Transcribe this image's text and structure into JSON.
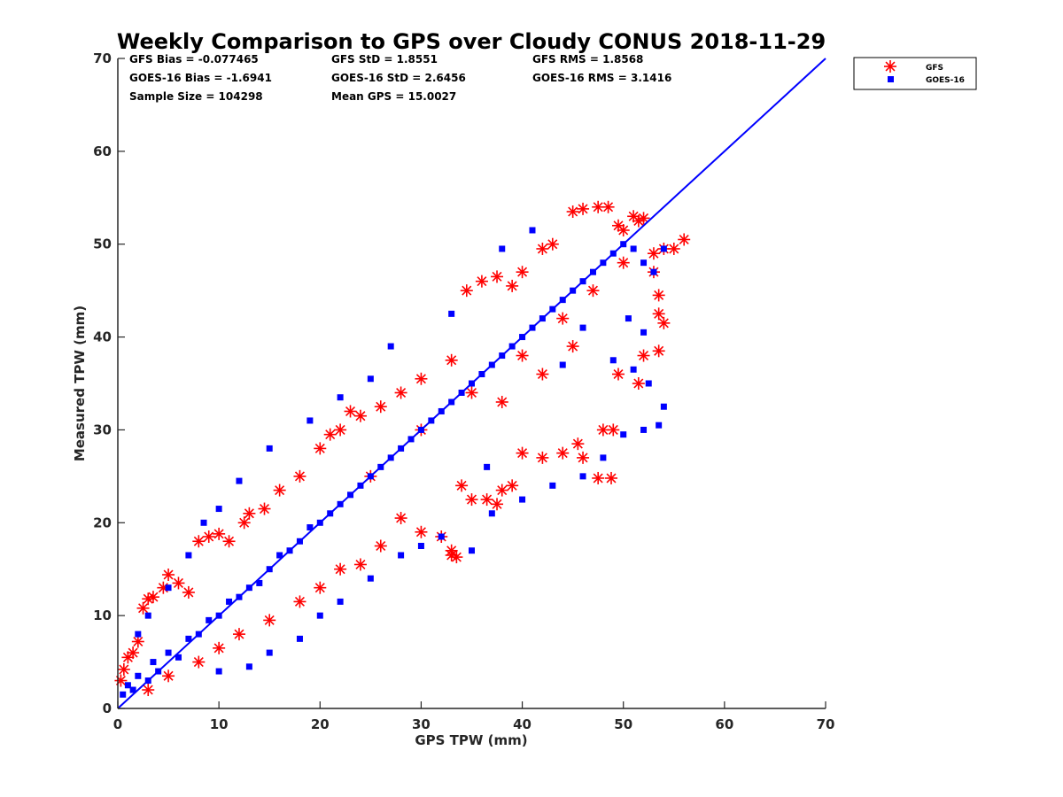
{
  "chart_data": {
    "type": "scatter",
    "title": "Weekly Comparison to GPS over Cloudy CONUS 2018-11-29",
    "xlabel": "GPS TPW (mm)",
    "ylabel": "Measured TPW (mm)",
    "xlim": [
      0,
      70
    ],
    "ylim": [
      0,
      70
    ],
    "xticks": [
      "0",
      "10",
      "20",
      "30",
      "40",
      "50",
      "60",
      "70"
    ],
    "yticks": [
      "0",
      "10",
      "20",
      "30",
      "40",
      "50",
      "60",
      "70"
    ],
    "grid": false,
    "legend_position": "outside-top-right",
    "reference_line": {
      "x": [
        0,
        70
      ],
      "y": [
        0,
        70
      ],
      "color": "#0000ff"
    },
    "stats": {
      "gfs_bias": "GFS Bias = -0.077465",
      "gfs_std": "GFS StD = 1.8551",
      "gfs_rms": "GFS RMS = 1.8568",
      "goes_bias": "GOES-16 Bias = -1.6941",
      "goes_std": "GOES-16 StD = 2.6456",
      "goes_rms": "GOES-16 RMS = 3.1416",
      "sample_size": "Sample Size = 104298",
      "mean_gps": "Mean GPS = 15.0027"
    },
    "series": [
      {
        "name": "GFS",
        "marker": "asterisk",
        "color": "#ff0000",
        "points": [
          [
            0.3,
            3.0
          ],
          [
            0.6,
            4.2
          ],
          [
            1.0,
            5.5
          ],
          [
            1.5,
            6.0
          ],
          [
            2.0,
            7.2
          ],
          [
            2.5,
            10.8
          ],
          [
            3.0,
            11.8
          ],
          [
            3.5,
            12.0
          ],
          [
            4.5,
            13.0
          ],
          [
            5.0,
            14.4
          ],
          [
            6.0,
            13.5
          ],
          [
            7.0,
            12.5
          ],
          [
            8.0,
            18.0
          ],
          [
            9.0,
            18.5
          ],
          [
            10.0,
            18.8
          ],
          [
            11.0,
            18.0
          ],
          [
            12.5,
            20.0
          ],
          [
            13.0,
            21.0
          ],
          [
            14.5,
            21.5
          ],
          [
            16.0,
            23.5
          ],
          [
            18.0,
            25.0
          ],
          [
            20.0,
            28.0
          ],
          [
            21.0,
            29.5
          ],
          [
            22.0,
            30.0
          ],
          [
            23.0,
            32.0
          ],
          [
            24.0,
            31.5
          ],
          [
            26.0,
            32.5
          ],
          [
            28.0,
            34.0
          ],
          [
            30.0,
            35.5
          ],
          [
            33.0,
            37.5
          ],
          [
            34.5,
            45.0
          ],
          [
            36.0,
            46.0
          ],
          [
            37.5,
            46.5
          ],
          [
            39.0,
            45.5
          ],
          [
            40.0,
            47.0
          ],
          [
            42.0,
            49.5
          ],
          [
            43.0,
            50.0
          ],
          [
            45.0,
            53.5
          ],
          [
            46.0,
            53.8
          ],
          [
            47.5,
            54.0
          ],
          [
            48.5,
            54.0
          ],
          [
            49.5,
            52.0
          ],
          [
            50.0,
            51.5
          ],
          [
            51.0,
            53.0
          ],
          [
            51.5,
            52.5
          ],
          [
            52.0,
            52.8
          ],
          [
            53.0,
            49.0
          ],
          [
            54.0,
            49.5
          ],
          [
            55.0,
            49.5
          ],
          [
            56.0,
            50.5
          ],
          [
            53.0,
            47.0
          ],
          [
            53.5,
            44.5
          ],
          [
            53.5,
            42.5
          ],
          [
            54.0,
            41.5
          ],
          [
            53.5,
            38.5
          ],
          [
            52.0,
            38.0
          ],
          [
            51.5,
            35.0
          ],
          [
            49.5,
            36.0
          ],
          [
            48.0,
            30.0
          ],
          [
            49.0,
            30.0
          ],
          [
            47.5,
            24.8
          ],
          [
            48.8,
            24.8
          ],
          [
            46.0,
            27.0
          ],
          [
            45.5,
            28.5
          ],
          [
            44.0,
            27.5
          ],
          [
            42.0,
            27.0
          ],
          [
            40.0,
            27.5
          ],
          [
            39.0,
            24.0
          ],
          [
            38.0,
            23.5
          ],
          [
            37.5,
            22.0
          ],
          [
            36.5,
            22.5
          ],
          [
            35.0,
            22.5
          ],
          [
            33.0,
            16.5
          ],
          [
            33.5,
            16.3
          ],
          [
            33.0,
            17.0
          ],
          [
            32.0,
            18.5
          ],
          [
            34.0,
            24.0
          ],
          [
            30.0,
            19.0
          ],
          [
            28.0,
            20.5
          ],
          [
            26.0,
            17.5
          ],
          [
            24.0,
            15.5
          ],
          [
            22.0,
            15.0
          ],
          [
            20.0,
            13.0
          ],
          [
            18.0,
            11.5
          ],
          [
            15.0,
            9.5
          ],
          [
            12.0,
            8.0
          ],
          [
            10.0,
            6.5
          ],
          [
            8.0,
            5.0
          ],
          [
            5.0,
            3.5
          ],
          [
            3.0,
            2.0
          ],
          [
            25.0,
            25.0
          ],
          [
            30.0,
            30.0
          ],
          [
            35.0,
            34.0
          ],
          [
            40.0,
            38.0
          ],
          [
            44.0,
            42.0
          ],
          [
            47.0,
            45.0
          ],
          [
            50.0,
            48.0
          ],
          [
            45.0,
            39.0
          ],
          [
            42.0,
            36.0
          ],
          [
            38.0,
            33.0
          ]
        ]
      },
      {
        "name": "GOES-16",
        "marker": "square",
        "color": "#0000ff",
        "points": [
          [
            0.5,
            1.5
          ],
          [
            1.0,
            2.5
          ],
          [
            1.5,
            2.0
          ],
          [
            2.0,
            3.5
          ],
          [
            3.0,
            3.0
          ],
          [
            3.5,
            5.0
          ],
          [
            4.0,
            4.0
          ],
          [
            5.0,
            6.0
          ],
          [
            6.0,
            5.5
          ],
          [
            7.0,
            7.5
          ],
          [
            8.0,
            8.0
          ],
          [
            9.0,
            9.5
          ],
          [
            10.0,
            10.0
          ],
          [
            11.0,
            11.5
          ],
          [
            12.0,
            12.0
          ],
          [
            13.0,
            13.0
          ],
          [
            14.0,
            13.5
          ],
          [
            15.0,
            15.0
          ],
          [
            16.0,
            16.5
          ],
          [
            17.0,
            17.0
          ],
          [
            18.0,
            18.0
          ],
          [
            19.0,
            19.5
          ],
          [
            20.0,
            20.0
          ],
          [
            21.0,
            21.0
          ],
          [
            22.0,
            22.0
          ],
          [
            23.0,
            23.0
          ],
          [
            24.0,
            24.0
          ],
          [
            25.0,
            25.0
          ],
          [
            26.0,
            26.0
          ],
          [
            27.0,
            27.0
          ],
          [
            28.0,
            28.0
          ],
          [
            29.0,
            29.0
          ],
          [
            30.0,
            30.0
          ],
          [
            31.0,
            31.0
          ],
          [
            32.0,
            32.0
          ],
          [
            33.0,
            33.0
          ],
          [
            34.0,
            34.0
          ],
          [
            35.0,
            35.0
          ],
          [
            36.0,
            36.0
          ],
          [
            37.0,
            37.0
          ],
          [
            38.0,
            38.0
          ],
          [
            39.0,
            39.0
          ],
          [
            40.0,
            40.0
          ],
          [
            41.0,
            41.0
          ],
          [
            42.0,
            42.0
          ],
          [
            43.0,
            43.0
          ],
          [
            44.0,
            44.0
          ],
          [
            45.0,
            45.0
          ],
          [
            46.0,
            46.0
          ],
          [
            47.0,
            47.0
          ],
          [
            48.0,
            48.0
          ],
          [
            49.0,
            49.0
          ],
          [
            50.0,
            50.0
          ],
          [
            51.0,
            49.5
          ],
          [
            52.0,
            48.0
          ],
          [
            53.0,
            47.0
          ],
          [
            54.0,
            49.5
          ],
          [
            41.0,
            51.5
          ],
          [
            38.0,
            49.5
          ],
          [
            33.0,
            42.5
          ],
          [
            27.0,
            39.0
          ],
          [
            25.0,
            35.5
          ],
          [
            22.0,
            33.5
          ],
          [
            19.0,
            31.0
          ],
          [
            15.0,
            28.0
          ],
          [
            12.0,
            24.5
          ],
          [
            10.0,
            21.5
          ],
          [
            8.5,
            20.0
          ],
          [
            7.0,
            16.5
          ],
          [
            5.0,
            13.0
          ],
          [
            3.0,
            10.0
          ],
          [
            2.0,
            8.0
          ],
          [
            10.0,
            4.0
          ],
          [
            13.0,
            4.5
          ],
          [
            15.0,
            6.0
          ],
          [
            18.0,
            7.5
          ],
          [
            20.0,
            10.0
          ],
          [
            22.0,
            11.5
          ],
          [
            25.0,
            14.0
          ],
          [
            28.0,
            16.5
          ],
          [
            30.0,
            17.5
          ],
          [
            32.0,
            18.5
          ],
          [
            35.0,
            17.0
          ],
          [
            37.0,
            21.0
          ],
          [
            40.0,
            22.5
          ],
          [
            43.0,
            24.0
          ],
          [
            46.0,
            25.0
          ],
          [
            48.0,
            27.0
          ],
          [
            50.0,
            29.5
          ],
          [
            52.0,
            30.0
          ],
          [
            53.5,
            30.5
          ],
          [
            54.0,
            32.5
          ],
          [
            52.5,
            35.0
          ],
          [
            51.0,
            36.5
          ],
          [
            49.0,
            37.5
          ],
          [
            52.0,
            40.5
          ],
          [
            50.5,
            42.0
          ],
          [
            46.0,
            41.0
          ],
          [
            44.0,
            37.0
          ],
          [
            36.5,
            26.0
          ]
        ]
      }
    ]
  }
}
